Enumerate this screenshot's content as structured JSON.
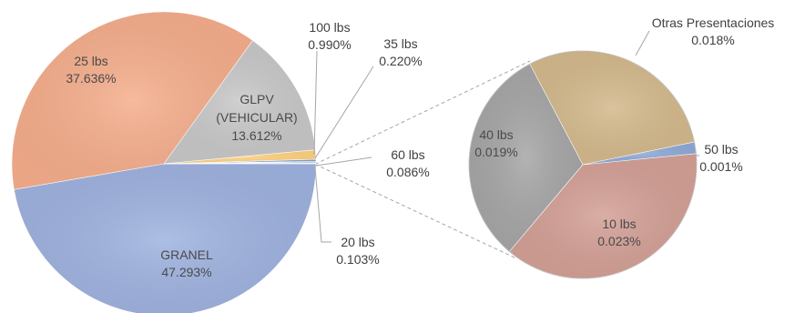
{
  "chart_data": [
    {
      "type": "pie",
      "title": "",
      "slices": [
        {
          "label": "GRANEL",
          "value": 47.293,
          "value_label": "47.293%",
          "color": "#9FB3E0"
        },
        {
          "label": "25 lbs",
          "value": 37.636,
          "value_label": "37.636%",
          "color": "#F6AE8C"
        },
        {
          "label": "GLPV (VEHICULAR)",
          "value": 13.612,
          "value_label": "13.612%",
          "color": "#C8C8C8"
        },
        {
          "label": "100 lbs",
          "value": 0.99,
          "value_label": "0.990%",
          "color": "#FFD27F"
        },
        {
          "label": "35 lbs",
          "value": 0.22,
          "value_label": "0.220%",
          "color": "#7FA1D8"
        },
        {
          "label": "60 lbs",
          "value": 0.086,
          "value_label": "0.086%",
          "color": "#8FBC6F"
        },
        {
          "label": "20 lbs",
          "value": 0.103,
          "value_label": "0.103%",
          "color": "#2F5F8F"
        },
        {
          "label": "Otras Presentaciones",
          "value": 0.061,
          "value_label": "",
          "color": "#9A9A9A"
        }
      ]
    },
    {
      "type": "pie",
      "title": "Otras Presentaciones",
      "subtitle": "0.018%",
      "slices": [
        {
          "label": "Otras Presentaciones",
          "value": 0.018,
          "value_label": "0.018%",
          "color": "#D4B98C"
        },
        {
          "label": "50 lbs",
          "value": 0.001,
          "value_label": "0.001%",
          "color": "#8FAAD8"
        },
        {
          "label": "10 lbs",
          "value": 0.023,
          "value_label": "0.023%",
          "color": "#D4A096"
        },
        {
          "label": "40 lbs",
          "value": 0.019,
          "value_label": "0.019%",
          "color": "#A6A6A6"
        }
      ]
    }
  ]
}
